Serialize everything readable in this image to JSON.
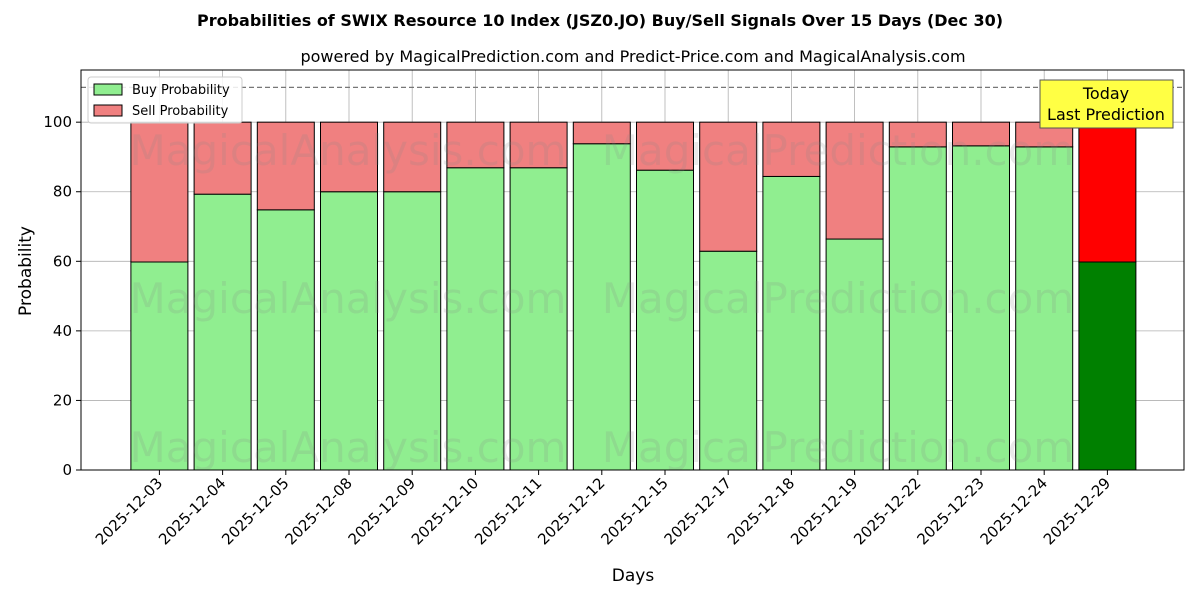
{
  "chart_data": {
    "type": "bar",
    "stacked": true,
    "title": "Probabilities of SWIX Resource 10 Index (JSZ0.JO) Buy/Sell Signals Over 15 Days (Dec 30)",
    "subtitle": "powered by MagicalPrediction.com and Predict-Price.com and MagicalAnalysis.com",
    "xlabel": "Days",
    "ylabel": "Probability",
    "ylim": [
      0,
      115
    ],
    "yticks": [
      0,
      20,
      40,
      60,
      80,
      100
    ],
    "reference_line": 110,
    "grid": true,
    "legend_position": "top-left",
    "categories": [
      "2025-12-03",
      "2025-12-04",
      "2025-12-05",
      "2025-12-08",
      "2025-12-09",
      "2025-12-10",
      "2025-12-11",
      "2025-12-12",
      "2025-12-15",
      "2025-12-17",
      "2025-12-18",
      "2025-12-19",
      "2025-12-22",
      "2025-12-23",
      "2025-12-24",
      "2025-12-29"
    ],
    "series": [
      {
        "name": "Buy Probability",
        "color": "#90ee90",
        "highlight_color": "#008000",
        "values": [
          59.8,
          79.3,
          74.8,
          80.0,
          80.0,
          86.9,
          86.9,
          93.8,
          86.2,
          62.9,
          84.4,
          66.4,
          92.9,
          93.2,
          92.9,
          59.8
        ]
      },
      {
        "name": "Sell Probability",
        "color": "#f08080",
        "highlight_color": "#ff0000",
        "values": [
          40.2,
          20.7,
          25.2,
          20.0,
          20.0,
          13.1,
          13.1,
          6.2,
          13.8,
          37.1,
          15.6,
          33.6,
          7.1,
          6.8,
          7.1,
          40.2
        ]
      }
    ],
    "highlight_index": 15,
    "annotation": {
      "lines": [
        "Today",
        "Last Prediction"
      ],
      "color": "#ffff44"
    },
    "watermarks": [
      "MagicalAnalysis.com",
      "MagicalPrediction.com"
    ]
  }
}
